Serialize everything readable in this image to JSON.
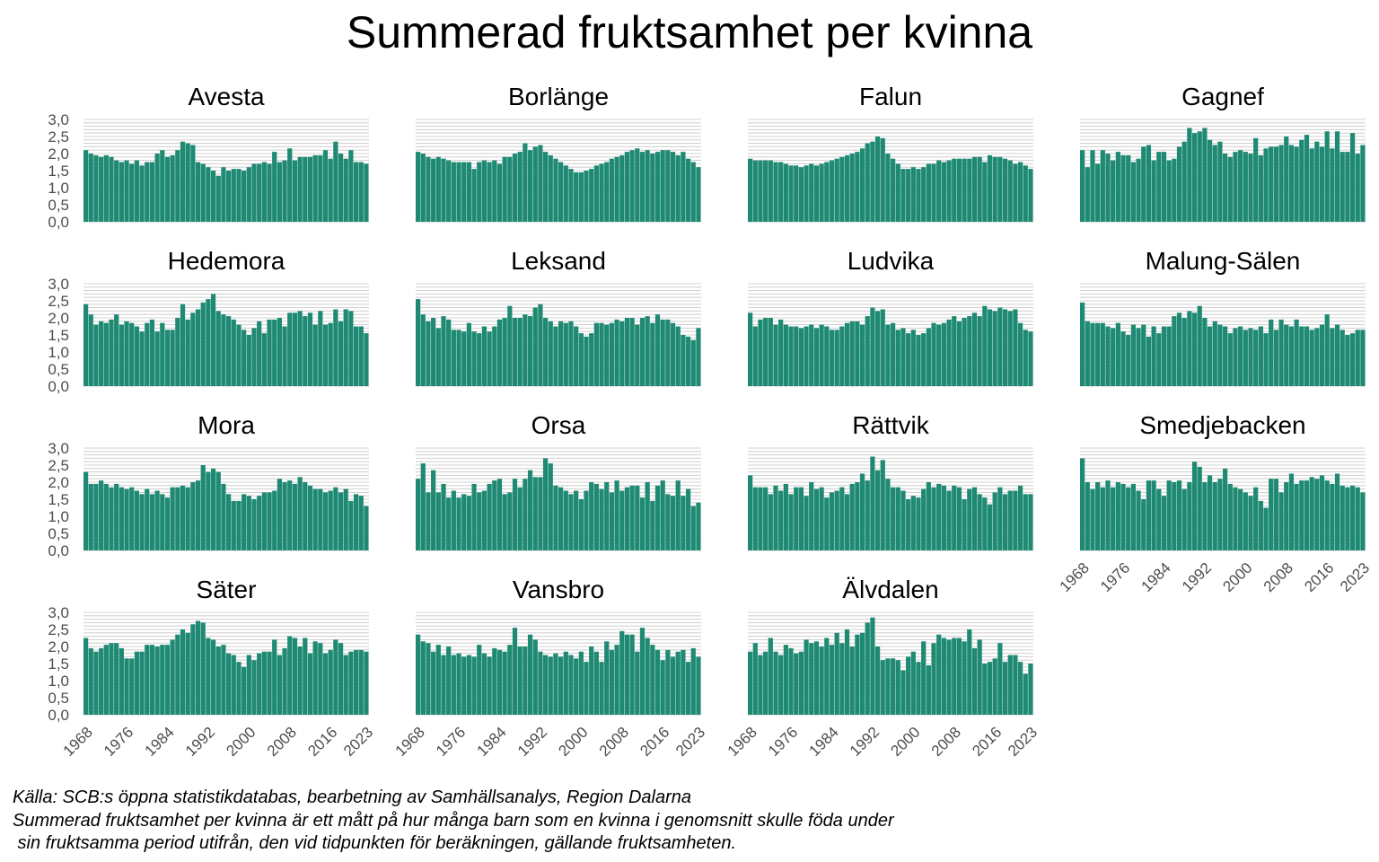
{
  "chart_data": {
    "type": "bar",
    "title": "Summerad fruktsamhet per kvinna",
    "bar_color": "#1f8a73",
    "grid_color": "#d3d3d3",
    "ylim": [
      0,
      3.0
    ],
    "y_ticks": [
      "0,0",
      "0,5",
      "1,0",
      "1,5",
      "2,0",
      "2,5",
      "3,0"
    ],
    "x": [
      1968,
      1969,
      1970,
      1971,
      1972,
      1973,
      1974,
      1975,
      1976,
      1977,
      1978,
      1979,
      1980,
      1981,
      1982,
      1983,
      1984,
      1985,
      1986,
      1987,
      1988,
      1989,
      1990,
      1991,
      1992,
      1993,
      1994,
      1995,
      1996,
      1997,
      1998,
      1999,
      2000,
      2001,
      2002,
      2003,
      2004,
      2005,
      2006,
      2007,
      2008,
      2009,
      2010,
      2011,
      2012,
      2013,
      2014,
      2015,
      2016,
      2017,
      2018,
      2019,
      2020,
      2021,
      2022,
      2023
    ],
    "x_tick_labels": [
      "1968",
      "1976",
      "1984",
      "1992",
      "2000",
      "2008",
      "2016",
      "2023"
    ],
    "panels": [
      {
        "name": "Avesta",
        "values": [
          2.1,
          2.0,
          1.95,
          1.9,
          1.95,
          1.9,
          1.8,
          1.75,
          1.8,
          1.7,
          1.8,
          1.65,
          1.75,
          1.75,
          2.0,
          2.1,
          1.9,
          1.95,
          2.1,
          2.35,
          2.3,
          2.25,
          1.75,
          1.7,
          1.6,
          1.5,
          1.35,
          1.6,
          1.5,
          1.55,
          1.55,
          1.5,
          1.6,
          1.7,
          1.7,
          1.75,
          1.7,
          2.05,
          1.75,
          1.8,
          2.15,
          1.8,
          1.9,
          1.9,
          1.9,
          1.95,
          1.95,
          2.1,
          1.85,
          2.35,
          2.0,
          1.85,
          2.1,
          1.75,
          1.75,
          1.7
        ]
      },
      {
        "name": "Borlänge",
        "values": [
          2.05,
          2.0,
          1.9,
          1.85,
          1.9,
          1.85,
          1.8,
          1.75,
          1.75,
          1.75,
          1.75,
          1.55,
          1.75,
          1.8,
          1.75,
          1.8,
          1.7,
          1.9,
          1.9,
          2.0,
          2.05,
          2.3,
          2.1,
          2.2,
          2.25,
          2.05,
          1.95,
          1.85,
          1.75,
          1.65,
          1.55,
          1.45,
          1.45,
          1.5,
          1.55,
          1.65,
          1.7,
          1.75,
          1.85,
          1.9,
          1.95,
          2.05,
          2.1,
          2.15,
          2.05,
          2.1,
          2.0,
          2.05,
          2.1,
          2.1,
          2.05,
          1.95,
          2.05,
          1.85,
          1.75,
          1.6
        ]
      },
      {
        "name": "Falun",
        "values": [
          1.85,
          1.8,
          1.8,
          1.8,
          1.8,
          1.75,
          1.75,
          1.7,
          1.65,
          1.65,
          1.6,
          1.65,
          1.7,
          1.65,
          1.7,
          1.75,
          1.8,
          1.85,
          1.9,
          1.95,
          2.0,
          2.05,
          2.15,
          2.3,
          2.35,
          2.5,
          2.45,
          2.0,
          1.85,
          1.7,
          1.55,
          1.55,
          1.6,
          1.55,
          1.6,
          1.7,
          1.7,
          1.8,
          1.75,
          1.8,
          1.85,
          1.85,
          1.85,
          1.85,
          1.9,
          1.9,
          1.75,
          1.95,
          1.9,
          1.9,
          1.85,
          1.8,
          1.7,
          1.75,
          1.65,
          1.55
        ]
      },
      {
        "name": "Gagnef",
        "values": [
          2.1,
          1.6,
          2.1,
          1.7,
          2.1,
          2.0,
          1.8,
          2.05,
          1.95,
          1.95,
          1.75,
          1.85,
          2.2,
          2.25,
          1.8,
          2.05,
          2.05,
          1.8,
          1.85,
          2.2,
          2.35,
          2.75,
          2.6,
          2.65,
          2.75,
          2.4,
          2.25,
          2.35,
          2.0,
          1.9,
          2.05,
          2.1,
          2.05,
          2.0,
          2.45,
          1.95,
          2.15,
          2.2,
          2.2,
          2.25,
          2.5,
          2.25,
          2.2,
          2.4,
          2.55,
          2.15,
          2.35,
          2.2,
          2.65,
          2.15,
          2.65,
          2.05,
          2.05,
          2.6,
          2.0,
          2.25
        ]
      },
      {
        "name": "Hedemora",
        "values": [
          2.4,
          2.1,
          1.8,
          1.9,
          1.85,
          1.95,
          2.1,
          1.8,
          1.9,
          1.85,
          1.75,
          1.6,
          1.85,
          1.95,
          1.6,
          1.85,
          1.65,
          1.65,
          2.0,
          2.4,
          1.95,
          2.15,
          2.25,
          2.45,
          2.55,
          2.7,
          2.2,
          2.1,
          2.05,
          1.95,
          1.8,
          1.65,
          1.5,
          1.7,
          1.9,
          1.55,
          1.95,
          1.95,
          2.0,
          1.75,
          2.15,
          2.15,
          2.2,
          2.05,
          2.15,
          1.8,
          2.2,
          1.8,
          1.85,
          2.25,
          1.9,
          2.25,
          2.2,
          1.75,
          1.75,
          1.55
        ]
      },
      {
        "name": "Leksand",
        "values": [
          2.55,
          2.1,
          1.9,
          2.0,
          1.7,
          2.05,
          1.95,
          1.65,
          1.65,
          1.6,
          1.85,
          1.6,
          1.55,
          1.75,
          1.6,
          1.75,
          1.95,
          2.0,
          2.35,
          2.0,
          2.0,
          2.1,
          2.05,
          2.3,
          2.4,
          2.0,
          1.9,
          1.75,
          1.9,
          1.85,
          1.9,
          1.75,
          1.55,
          1.45,
          1.55,
          1.85,
          1.85,
          1.8,
          1.85,
          1.95,
          1.9,
          2.0,
          2.0,
          1.8,
          2.0,
          2.05,
          1.85,
          2.1,
          1.95,
          1.95,
          1.85,
          1.75,
          1.5,
          1.45,
          1.35,
          1.7
        ]
      },
      {
        "name": "Ludvika",
        "values": [
          2.15,
          1.75,
          1.95,
          2.0,
          2.0,
          1.8,
          1.95,
          1.8,
          1.75,
          1.75,
          1.7,
          1.75,
          1.8,
          1.7,
          1.8,
          1.75,
          1.65,
          1.65,
          1.75,
          1.85,
          1.9,
          1.9,
          1.8,
          2.05,
          2.3,
          2.2,
          2.25,
          1.8,
          1.85,
          1.65,
          1.7,
          1.55,
          1.65,
          1.5,
          1.55,
          1.7,
          1.85,
          1.8,
          1.85,
          1.95,
          2.05,
          1.9,
          2.0,
          2.05,
          2.15,
          2.05,
          2.35,
          2.25,
          2.2,
          2.3,
          2.25,
          2.2,
          2.25,
          1.85,
          1.65,
          1.6
        ]
      },
      {
        "name": "Malung-Sälen",
        "values": [
          2.45,
          1.9,
          1.85,
          1.85,
          1.85,
          1.75,
          1.7,
          1.85,
          1.6,
          1.5,
          1.8,
          1.7,
          1.8,
          1.45,
          1.75,
          1.55,
          1.75,
          1.75,
          2.05,
          2.15,
          2.0,
          2.2,
          2.15,
          2.35,
          2.0,
          1.75,
          1.9,
          1.8,
          1.75,
          1.55,
          1.7,
          1.75,
          1.65,
          1.7,
          1.65,
          1.75,
          1.55,
          1.95,
          1.65,
          1.95,
          1.8,
          1.75,
          1.95,
          1.75,
          1.75,
          1.65,
          1.7,
          1.8,
          2.1,
          1.7,
          1.8,
          1.65,
          1.5,
          1.55,
          1.65,
          1.65
        ]
      },
      {
        "name": "Mora",
        "values": [
          2.3,
          1.95,
          1.95,
          2.05,
          1.95,
          1.85,
          1.95,
          1.85,
          1.8,
          1.85,
          1.75,
          1.65,
          1.8,
          1.65,
          1.75,
          1.65,
          1.55,
          1.85,
          1.85,
          1.9,
          1.85,
          2.0,
          2.05,
          2.5,
          2.3,
          2.4,
          2.3,
          1.95,
          1.65,
          1.45,
          1.45,
          1.65,
          1.6,
          1.5,
          1.6,
          1.7,
          1.7,
          1.75,
          2.1,
          2.0,
          2.05,
          1.95,
          2.15,
          2.0,
          1.9,
          1.8,
          1.8,
          1.7,
          1.75,
          1.85,
          1.7,
          1.8,
          1.45,
          1.65,
          1.6,
          1.3
        ]
      },
      {
        "name": "Orsa",
        "values": [
          2.1,
          2.55,
          1.7,
          2.35,
          1.7,
          1.95,
          1.55,
          1.75,
          1.55,
          1.65,
          1.6,
          1.95,
          1.7,
          1.75,
          1.95,
          2.05,
          2.1,
          1.65,
          1.7,
          2.1,
          1.85,
          2.1,
          2.35,
          2.15,
          2.15,
          2.7,
          2.55,
          1.9,
          1.85,
          1.75,
          1.65,
          1.75,
          1.5,
          1.75,
          2.0,
          1.95,
          1.8,
          2.0,
          1.7,
          2.05,
          1.75,
          1.85,
          1.9,
          1.9,
          1.55,
          2.0,
          1.45,
          1.9,
          2.05,
          1.65,
          1.6,
          2.05,
          1.6,
          1.8,
          1.3,
          1.4
        ]
      },
      {
        "name": "Rättvik",
        "values": [
          2.2,
          1.85,
          1.85,
          1.85,
          1.65,
          1.9,
          1.75,
          1.95,
          1.65,
          1.85,
          1.85,
          1.6,
          2.0,
          1.8,
          1.85,
          1.55,
          1.7,
          1.75,
          1.85,
          1.65,
          1.95,
          2.0,
          2.25,
          2.05,
          2.75,
          2.35,
          2.65,
          2.1,
          1.85,
          1.85,
          1.75,
          1.5,
          1.6,
          1.55,
          1.8,
          2.0,
          1.85,
          1.95,
          1.9,
          1.75,
          1.9,
          1.85,
          1.5,
          1.8,
          1.85,
          1.65,
          1.55,
          1.35,
          1.7,
          1.85,
          1.65,
          1.75,
          1.75,
          1.9,
          1.65,
          1.65
        ]
      },
      {
        "name": "Smedjebacken",
        "values": [
          2.7,
          2.0,
          1.8,
          2.0,
          1.85,
          2.05,
          1.85,
          2.0,
          1.95,
          1.85,
          1.95,
          1.75,
          1.5,
          2.05,
          2.05,
          1.8,
          1.6,
          2.05,
          2.0,
          2.05,
          1.8,
          2.0,
          2.6,
          2.45,
          2.0,
          2.2,
          2.0,
          2.1,
          2.4,
          1.95,
          1.85,
          1.8,
          1.7,
          1.6,
          1.85,
          1.45,
          1.25,
          2.1,
          2.1,
          1.7,
          2.0,
          2.25,
          1.95,
          2.05,
          2.05,
          2.15,
          2.1,
          2.2,
          2.05,
          1.95,
          2.25,
          1.9,
          1.85,
          1.9,
          1.85,
          1.7
        ]
      },
      {
        "name": "Säter",
        "values": [
          2.25,
          1.95,
          1.85,
          1.95,
          2.05,
          2.1,
          2.1,
          1.95,
          1.65,
          1.65,
          1.85,
          1.85,
          2.05,
          2.05,
          2.0,
          2.05,
          2.05,
          2.2,
          2.35,
          2.5,
          2.4,
          2.65,
          2.75,
          2.7,
          2.25,
          2.2,
          2.0,
          2.05,
          1.8,
          1.75,
          1.55,
          1.4,
          1.75,
          1.6,
          1.8,
          1.85,
          1.85,
          2.2,
          1.75,
          1.95,
          2.3,
          2.25,
          2.0,
          2.25,
          1.8,
          2.15,
          2.1,
          1.8,
          1.9,
          2.2,
          2.1,
          1.75,
          1.85,
          1.9,
          1.9,
          1.85
        ]
      },
      {
        "name": "Vansbro",
        "values": [
          2.35,
          2.15,
          2.1,
          1.85,
          2.05,
          1.75,
          2.0,
          1.75,
          1.8,
          1.7,
          1.75,
          1.7,
          2.05,
          1.8,
          1.7,
          1.95,
          1.9,
          1.85,
          2.05,
          2.55,
          2.0,
          2.0,
          2.35,
          2.2,
          1.85,
          1.75,
          1.7,
          1.8,
          1.7,
          1.85,
          1.75,
          1.65,
          1.85,
          1.55,
          2.0,
          1.85,
          1.55,
          2.15,
          1.9,
          2.05,
          2.45,
          2.35,
          2.35,
          1.85,
          2.55,
          2.25,
          2.05,
          1.9,
          1.6,
          1.9,
          1.7,
          1.85,
          1.9,
          1.55,
          1.95,
          1.7
        ]
      },
      {
        "name": "Älvdalen",
        "values": [
          1.85,
          2.1,
          1.75,
          1.85,
          2.25,
          1.85,
          1.75,
          2.05,
          1.95,
          1.8,
          1.85,
          2.2,
          2.1,
          2.15,
          2.0,
          2.25,
          2.05,
          2.4,
          2.1,
          2.5,
          2.0,
          2.35,
          2.4,
          2.7,
          2.85,
          2.0,
          1.6,
          1.65,
          1.65,
          1.6,
          1.3,
          1.7,
          1.85,
          1.55,
          2.15,
          1.45,
          2.1,
          2.35,
          2.25,
          2.2,
          2.25,
          2.25,
          2.15,
          2.5,
          1.95,
          2.2,
          1.5,
          1.55,
          1.65,
          2.1,
          1.55,
          1.75,
          1.75,
          1.55,
          1.2,
          1.5
        ]
      }
    ]
  },
  "captions": {
    "line1": "Källa: SCB:s öppna statistikdatabas, bearbetning av Samhällsanalys, Region Dalarna",
    "line2": "Summerad fruktsamhet per kvinna är ett mått på hur många barn som en kvinna i genomsnitt skulle föda under",
    "line3": " sin fruktsamma period utifrån, den vid tidpunkten för beräkningen, gällande fruktsamheten."
  }
}
